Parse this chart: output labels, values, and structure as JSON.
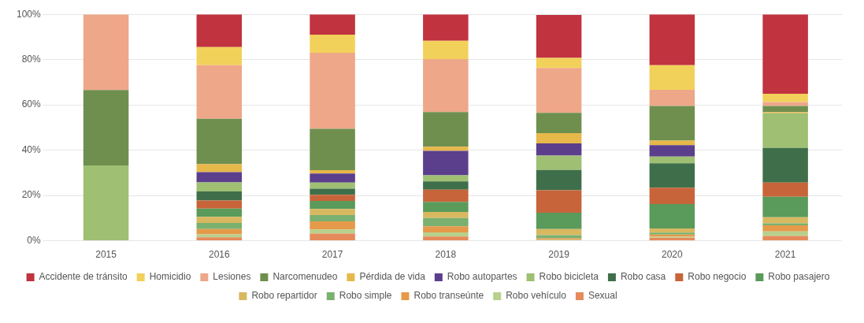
{
  "chart_data": {
    "type": "bar",
    "stacked": true,
    "categories": [
      "2015",
      "2016",
      "2017",
      "2018",
      "2019",
      "2020",
      "2021"
    ],
    "series": [
      {
        "name": "Sexual",
        "color": "#e58a5a",
        "values": [
          0,
          1.5,
          3.2,
          1.9,
          null,
          1.3,
          2.1
        ]
      },
      {
        "name": "Robo vehículo",
        "color": "#b7d08b",
        "values": [
          0,
          1.3,
          1.8,
          1.8,
          0.4,
          0.5,
          2
        ]
      },
      {
        "name": "Robo transeúnte",
        "color": "#e59a4a",
        "values": [
          0,
          2.4,
          3.6,
          2.7,
          0.7,
          0.9,
          2.7
        ]
      },
      {
        "name": "Robo simple",
        "color": "#7ab070",
        "values": [
          0,
          2.7,
          2.7,
          3.6,
          1.4,
          0.9,
          0.9
        ]
      },
      {
        "name": "Robo repartidor",
        "color": "#d8b860",
        "values": [
          0,
          2.7,
          2.7,
          2.7,
          2.7,
          1.8,
          2.7
        ]
      },
      {
        "name": "Robo pasajero",
        "color": "#5a9a5a",
        "values": [
          0,
          3.6,
          3.6,
          4.5,
          7.2,
          10.8,
          9
        ]
      },
      {
        "name": "Robo negocio",
        "color": "#c8643a",
        "values": [
          0,
          3.6,
          2.7,
          5.4,
          9.9,
          7.2,
          6.3
        ]
      },
      {
        "name": "Robo casa",
        "color": "#3f6f4a",
        "values": [
          0,
          4,
          2.7,
          3.6,
          9,
          10.8,
          15.3
        ]
      },
      {
        "name": "Robo bicicleta",
        "color": "#9fbf73",
        "values": [
          33.3,
          4,
          2.7,
          2.7,
          6.3,
          3,
          15.3
        ]
      },
      {
        "name": "Robo autopartes",
        "color": "#5b3f8c",
        "values": [
          0,
          4.5,
          4,
          10.8,
          5.4,
          5,
          0
        ]
      },
      {
        "name": "Pérdida de vida",
        "color": "#e7b84a",
        "values": [
          0,
          3.6,
          1.5,
          1.8,
          4.5,
          2,
          0.5
        ]
      },
      {
        "name": "Narcomenudeo",
        "color": "#6f8f4f",
        "values": [
          33.3,
          20,
          18.2,
          15.3,
          9,
          15.3,
          2.7
        ]
      },
      {
        "name": "Lesiones",
        "color": "#eea789",
        "values": [
          33.4,
          23.6,
          33.6,
          23.4,
          19.8,
          7.2,
          1.8
        ]
      },
      {
        "name": "Homicidio",
        "color": "#f2d15a",
        "values": [
          0,
          8,
          8,
          8.1,
          4.5,
          10.8,
          3.6
        ]
      },
      {
        "name": "Accidente de tránsito",
        "color": "#c0333f",
        "values": [
          0,
          14.5,
          9,
          11.7,
          18.9,
          22.5,
          35.1
        ]
      }
    ],
    "ylim": [
      0,
      100
    ],
    "yticks": [
      {
        "value": 0,
        "label": "0%"
      },
      {
        "value": 20,
        "label": "20%"
      },
      {
        "value": 40,
        "label": "40%"
      },
      {
        "value": 60,
        "label": "60%"
      },
      {
        "value": 80,
        "label": "80%"
      },
      {
        "value": 100,
        "label": "100%"
      }
    ],
    "grid": "y",
    "legend": "bottom"
  }
}
